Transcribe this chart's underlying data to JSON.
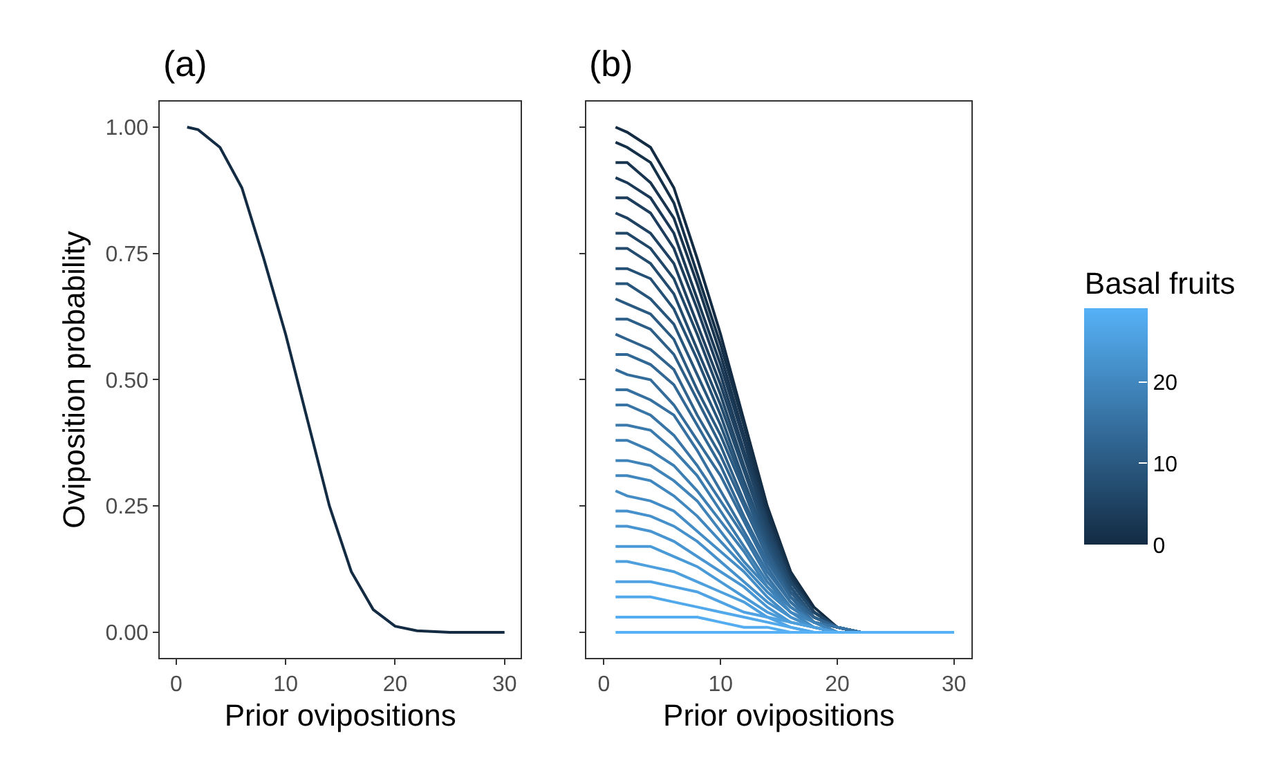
{
  "chart_data": [
    {
      "type": "line",
      "title": "(a)",
      "xlabel": "Prior ovipositions",
      "ylabel": "Oviposition probability",
      "xlim": [
        -1.5,
        31.5
      ],
      "xticks": [
        0,
        10,
        20,
        30
      ],
      "ylim": [
        -0.05,
        1.05
      ],
      "yticks": [
        {
          "value": 0,
          "label": "0.00"
        },
        {
          "value": 0.25,
          "label": "0.25"
        },
        {
          "value": 0.5,
          "label": "0.50"
        },
        {
          "value": 0.75,
          "label": "0.75"
        },
        {
          "value": 1,
          "label": "1.00"
        }
      ],
      "marker": "none",
      "x": [
        1,
        2,
        4,
        6,
        8,
        10,
        12,
        14,
        16,
        18,
        20,
        22,
        25,
        30
      ],
      "series": [
        {
          "color": "#132B43",
          "values": [
            1.0,
            0.995,
            0.96,
            0.88,
            0.74,
            0.59,
            0.42,
            0.25,
            0.12,
            0.045,
            0.012,
            0.003,
            0,
            0
          ]
        }
      ]
    },
    {
      "type": "line",
      "title": "(b)",
      "xlabel": "Prior ovipositions",
      "clabel": "Basal fruits",
      "clim": [
        0,
        29
      ],
      "cticks": [
        0,
        10,
        20
      ],
      "xlim": [
        -1.5,
        31.5
      ],
      "xticks": [
        0,
        10,
        20,
        30
      ],
      "ylim": [
        -0.05,
        1.05
      ],
      "yticks": [
        {
          "value": 0,
          "label": null
        },
        {
          "value": 0.25,
          "label": null
        },
        {
          "value": 0.5,
          "label": null
        },
        {
          "value": 0.75,
          "label": null
        },
        {
          "value": 1,
          "label": null
        }
      ],
      "tick_labels": "x",
      "marker": "none",
      "x": [
        1,
        2,
        4,
        6,
        8,
        10,
        12,
        14,
        16,
        18,
        20,
        22,
        25,
        30
      ],
      "series": [
        {
          "color": "#132B43",
          "values": [
            1.0,
            0.99,
            0.96,
            0.88,
            0.74,
            0.59,
            0.42,
            0.25,
            0.12,
            0.05,
            0.01,
            0,
            0,
            0
          ]
        },
        {
          "color": "#153049",
          "values": [
            0.97,
            0.96,
            0.93,
            0.85,
            0.71,
            0.57,
            0.41,
            0.24,
            0.12,
            0.04,
            0.01,
            0,
            0,
            0
          ]
        },
        {
          "color": "#18344F",
          "values": [
            0.93,
            0.93,
            0.89,
            0.82,
            0.69,
            0.55,
            0.39,
            0.23,
            0.11,
            0.04,
            0.01,
            0,
            0,
            0
          ]
        },
        {
          "color": "#1A3956",
          "values": [
            0.9,
            0.89,
            0.86,
            0.79,
            0.66,
            0.53,
            0.38,
            0.22,
            0.11,
            0.04,
            0.01,
            0,
            0,
            0
          ]
        },
        {
          "color": "#1C3D5C",
          "values": [
            0.86,
            0.86,
            0.83,
            0.76,
            0.64,
            0.51,
            0.36,
            0.22,
            0.1,
            0.04,
            0.01,
            0,
            0,
            0
          ]
        },
        {
          "color": "#1F4262",
          "values": [
            0.83,
            0.82,
            0.79,
            0.73,
            0.61,
            0.49,
            0.35,
            0.21,
            0.1,
            0.04,
            0.01,
            0,
            0,
            0
          ]
        },
        {
          "color": "#214768",
          "values": [
            0.79,
            0.79,
            0.76,
            0.7,
            0.59,
            0.47,
            0.33,
            0.2,
            0.1,
            0.04,
            0.01,
            0,
            0,
            0
          ]
        },
        {
          "color": "#234B6E",
          "values": [
            0.76,
            0.76,
            0.73,
            0.67,
            0.56,
            0.45,
            0.32,
            0.19,
            0.09,
            0.03,
            0.01,
            0,
            0,
            0
          ]
        },
        {
          "color": "#255075",
          "values": [
            0.72,
            0.72,
            0.7,
            0.64,
            0.54,
            0.43,
            0.3,
            0.18,
            0.09,
            0.03,
            0.01,
            0,
            0,
            0
          ]
        },
        {
          "color": "#28557B",
          "values": [
            0.69,
            0.69,
            0.66,
            0.61,
            0.51,
            0.41,
            0.29,
            0.17,
            0.08,
            0.03,
            0.01,
            0,
            0,
            0
          ]
        },
        {
          "color": "#2A5981",
          "values": [
            0.66,
            0.65,
            0.63,
            0.58,
            0.48,
            0.39,
            0.28,
            0.16,
            0.08,
            0.03,
            0.01,
            0,
            0,
            0
          ]
        },
        {
          "color": "#2C5E87",
          "values": [
            0.62,
            0.62,
            0.6,
            0.55,
            0.46,
            0.37,
            0.26,
            0.16,
            0.07,
            0.03,
            0.01,
            0,
            0,
            0
          ]
        },
        {
          "color": "#2F628D",
          "values": [
            0.59,
            0.58,
            0.56,
            0.52,
            0.43,
            0.35,
            0.25,
            0.15,
            0.07,
            0.03,
            0.01,
            0,
            0,
            0
          ]
        },
        {
          "color": "#316794",
          "values": [
            0.55,
            0.55,
            0.53,
            0.49,
            0.41,
            0.33,
            0.23,
            0.14,
            0.07,
            0.02,
            0.01,
            0,
            0,
            0
          ]
        },
        {
          "color": "#336C9A",
          "values": [
            0.52,
            0.51,
            0.5,
            0.45,
            0.38,
            0.31,
            0.22,
            0.13,
            0.06,
            0.02,
            0.01,
            0,
            0,
            0
          ]
        },
        {
          "color": "#3670A0",
          "values": [
            0.48,
            0.48,
            0.46,
            0.43,
            0.36,
            0.28,
            0.2,
            0.12,
            0.06,
            0.02,
            0.01,
            0,
            0,
            0
          ]
        },
        {
          "color": "#3875A6",
          "values": [
            0.45,
            0.45,
            0.43,
            0.39,
            0.33,
            0.26,
            0.19,
            0.11,
            0.05,
            0.02,
            0.01,
            0,
            0,
            0
          ]
        },
        {
          "color": "#3A7AAC",
          "values": [
            0.41,
            0.41,
            0.4,
            0.36,
            0.31,
            0.24,
            0.17,
            0.1,
            0.05,
            0.02,
            0,
            0,
            0,
            0
          ]
        },
        {
          "color": "#3D7EB3",
          "values": [
            0.38,
            0.38,
            0.36,
            0.33,
            0.28,
            0.22,
            0.16,
            0.09,
            0.05,
            0.02,
            0,
            0,
            0,
            0
          ]
        },
        {
          "color": "#3F83B9",
          "values": [
            0.34,
            0.34,
            0.33,
            0.3,
            0.26,
            0.2,
            0.14,
            0.09,
            0.04,
            0.02,
            0,
            0,
            0,
            0
          ]
        },
        {
          "color": "#4187BF",
          "values": [
            0.31,
            0.31,
            0.3,
            0.27,
            0.23,
            0.18,
            0.13,
            0.08,
            0.04,
            0.01,
            0,
            0,
            0,
            0
          ]
        },
        {
          "color": "#448CC5",
          "values": [
            0.28,
            0.27,
            0.26,
            0.24,
            0.2,
            0.16,
            0.12,
            0.07,
            0.03,
            0.01,
            0,
            0,
            0,
            0
          ]
        },
        {
          "color": "#4691CC",
          "values": [
            0.24,
            0.24,
            0.23,
            0.21,
            0.18,
            0.14,
            0.1,
            0.06,
            0.03,
            0.01,
            0,
            0,
            0,
            0
          ]
        },
        {
          "color": "#4895D2",
          "values": [
            0.21,
            0.21,
            0.2,
            0.18,
            0.15,
            0.12,
            0.09,
            0.05,
            0.02,
            0.01,
            0,
            0,
            0,
            0
          ]
        },
        {
          "color": "#4A9AD8",
          "values": [
            0.17,
            0.17,
            0.17,
            0.15,
            0.13,
            0.1,
            0.07,
            0.04,
            0.02,
            0.01,
            0,
            0,
            0,
            0
          ]
        },
        {
          "color": "#4D9FDE",
          "values": [
            0.14,
            0.14,
            0.13,
            0.12,
            0.1,
            0.08,
            0.06,
            0.03,
            0.02,
            0.01,
            0,
            0,
            0,
            0
          ]
        },
        {
          "color": "#4FA3E4",
          "values": [
            0.1,
            0.1,
            0.1,
            0.09,
            0.08,
            0.06,
            0.04,
            0.03,
            0.01,
            0,
            0,
            0,
            0,
            0
          ]
        },
        {
          "color": "#51A8EB",
          "values": [
            0.07,
            0.07,
            0.07,
            0.06,
            0.05,
            0.04,
            0.03,
            0.02,
            0.01,
            0,
            0,
            0,
            0,
            0
          ]
        },
        {
          "color": "#54ACF1",
          "values": [
            0.03,
            0.03,
            0.03,
            0.03,
            0.03,
            0.02,
            0.01,
            0.01,
            0,
            0,
            0,
            0,
            0,
            0
          ]
        },
        {
          "color": "#56B1F7",
          "values": [
            0,
            0,
            0,
            0,
            0,
            0,
            0,
            0,
            0,
            0,
            0,
            0,
            0,
            0
          ]
        }
      ]
    }
  ]
}
